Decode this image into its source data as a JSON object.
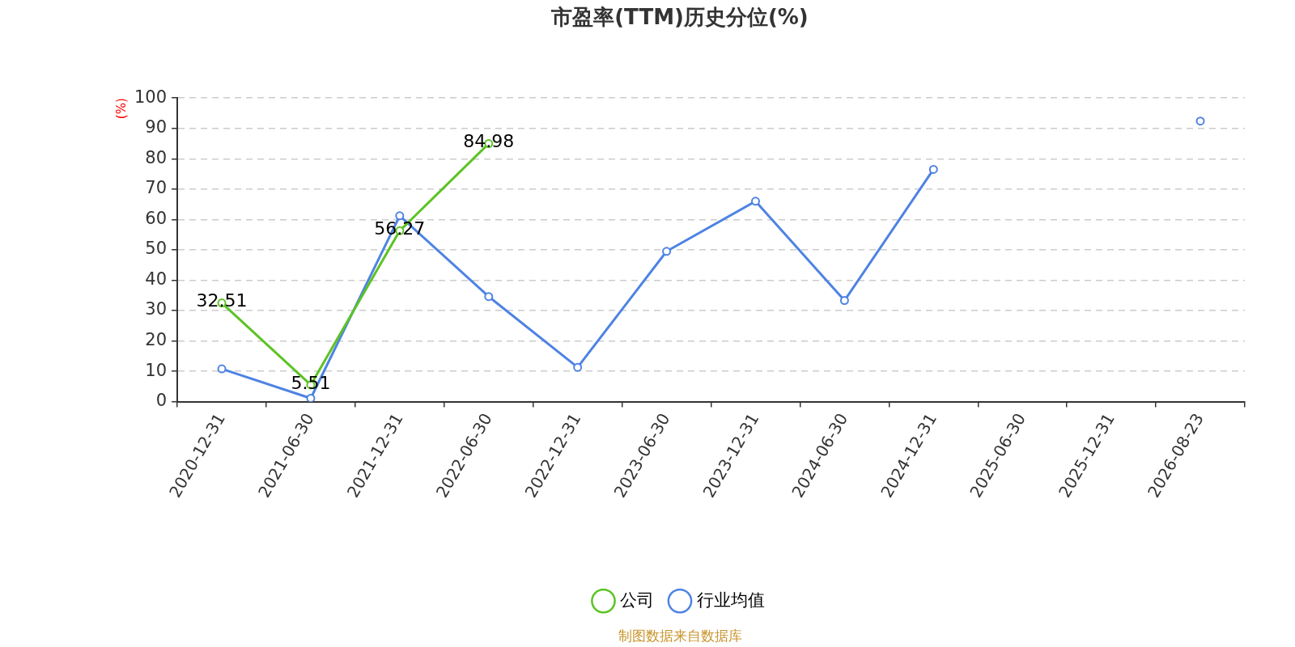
{
  "chart_data": {
    "type": "line",
    "title": "市盈率(TTM)历史分位(%)",
    "ylabel": "(%)",
    "categories": [
      "2020-12-31",
      "2021-06-30",
      "2021-12-31",
      "2022-06-30",
      "2022-12-31",
      "2023-06-30",
      "2023-12-31",
      "2024-06-30",
      "2024-12-31",
      "2025-06-30",
      "2025-12-31",
      "2026-08-23"
    ],
    "series": [
      {
        "name": "公司",
        "color": "#5cc323",
        "values": [
          32.51,
          5.51,
          56.27,
          84.98,
          null,
          null,
          null,
          null,
          null,
          null,
          null,
          null
        ],
        "value_labels": [
          "32.51",
          "5.51",
          "56.27",
          "84.98",
          null,
          null,
          null,
          null,
          null,
          null,
          null,
          null
        ]
      },
      {
        "name": "行业均值",
        "color": "#4e83e3",
        "values": [
          10.8,
          1.1,
          61.2,
          34.6,
          11.3,
          49.5,
          66.0,
          33.3,
          76.5,
          null,
          null,
          92.4
        ]
      }
    ],
    "ylim": [
      0,
      100
    ],
    "yticks": [
      0,
      10,
      20,
      30,
      40,
      50,
      60,
      70,
      80,
      90,
      100
    ],
    "grid": "y",
    "legend": "bottom",
    "marker": "circle",
    "line_style": "solid",
    "annotations": [
      "制图数据来自数据库"
    ]
  }
}
